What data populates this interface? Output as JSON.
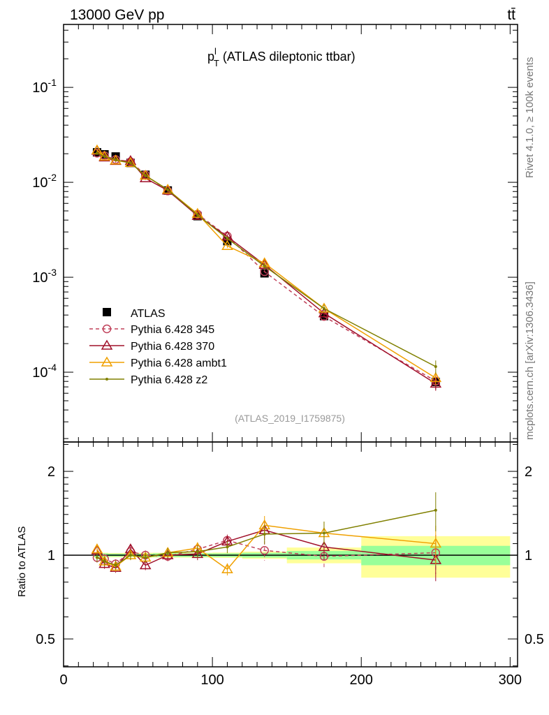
{
  "header": {
    "left": "13000 GeV pp",
    "right": "tt̄"
  },
  "side": {
    "top": "Rivet 4.1.0, ≥ 100k events",
    "bottom": "mcplots.cern.ch [arXiv:1306.3436]"
  },
  "chart_data": [
    {
      "type": "line",
      "title": "p_T^l (ATLAS dileptonic ttbar)",
      "title_main": "p",
      "title_sup": "l",
      "title_sub": "T",
      "title_rest": " (ATLAS dileptonic ttbar)",
      "annotation": "(ATLAS_2019_I1759875)",
      "yscale": "log",
      "xlim": [
        0,
        305
      ],
      "ylim": [
        1.84e-05,
        0.46
      ],
      "yticks": [
        {
          "v": 0.1,
          "label": "10^-1"
        },
        {
          "v": 0.01,
          "label": "10^-2"
        },
        {
          "v": 0.001,
          "label": "10^-3"
        },
        {
          "v": 0.0001,
          "label": "10^-4"
        }
      ],
      "legend_position": "lower-left",
      "x": [
        22.5,
        27.5,
        35,
        45,
        55,
        70,
        90,
        110,
        135,
        175,
        250
      ],
      "bins": [
        [
          20,
          25
        ],
        [
          25,
          30
        ],
        [
          30,
          40
        ],
        [
          40,
          50
        ],
        [
          50,
          60
        ],
        [
          60,
          80
        ],
        [
          80,
          100
        ],
        [
          100,
          120
        ],
        [
          120,
          150
        ],
        [
          150,
          200
        ],
        [
          200,
          300
        ]
      ],
      "data": {
        "name": "ATLAS",
        "values": [
          0.0207,
          0.0197,
          0.0187,
          0.016,
          0.012,
          0.0082,
          0.0044,
          0.0024,
          0.0011,
          0.00039,
          7.9e-05
        ],
        "rel_err_stat": [
          0.015,
          0.015,
          0.012,
          0.012,
          0.012,
          0.015,
          0.015,
          0.015,
          0.02,
          0.035,
          0.08
        ],
        "rel_err_tot": [
          0.02,
          0.02,
          0.018,
          0.018,
          0.02,
          0.02,
          0.02,
          0.022,
          0.03,
          0.065,
          0.17
        ]
      },
      "series": [
        {
          "name": "Pythia 6.428 345",
          "color": "#c0415a",
          "marker": "circle",
          "dashed": true,
          "ratio": [
            0.98,
            0.97,
            0.93,
            1.03,
            1.0,
            0.99,
            1.05,
            1.13,
            1.04,
            0.99,
            1.02
          ],
          "rel_err": [
            0.04,
            0.04,
            0.04,
            0.04,
            0.04,
            0.04,
            0.05,
            0.05,
            0.08,
            0.1,
            0.16
          ]
        },
        {
          "name": "Pythia 6.428 370",
          "color": "#a0102a",
          "marker": "triangle",
          "dashed": false,
          "ratio": [
            1.04,
            0.93,
            0.9,
            1.05,
            0.92,
            1.0,
            1.01,
            1.12,
            1.23,
            1.07,
            0.96
          ],
          "rel_err": [
            0.04,
            0.04,
            0.04,
            0.04,
            0.04,
            0.04,
            0.05,
            0.05,
            0.08,
            0.1,
            0.16
          ]
        },
        {
          "name": "Pythia 6.428 ambt1",
          "color": "#f0a000",
          "marker": "triangle",
          "dashed": false,
          "ratio": [
            1.05,
            0.95,
            0.91,
            1.0,
            0.98,
            1.02,
            1.06,
            0.89,
            1.28,
            1.2,
            1.1
          ],
          "rel_err": [
            0.04,
            0.04,
            0.04,
            0.04,
            0.04,
            0.04,
            0.05,
            0.05,
            0.08,
            0.1,
            0.16
          ]
        },
        {
          "name": "Pythia 6.428 z2",
          "color": "#808000",
          "marker": "dot",
          "dashed": false,
          "ratio": [
            0.98,
            0.95,
            0.92,
            1.0,
            0.98,
            1.02,
            1.03,
            1.07,
            1.19,
            1.2,
            1.45
          ],
          "rel_err": [
            0.04,
            0.04,
            0.04,
            0.04,
            0.04,
            0.04,
            0.05,
            0.05,
            0.08,
            0.1,
            0.16
          ]
        }
      ]
    },
    {
      "type": "line",
      "ylabel": "Ratio to ATLAS",
      "yscale": "log",
      "ylim": [
        0.397,
        2.55
      ],
      "yticks": [
        {
          "v": 2,
          "label": "2"
        },
        {
          "v": 1,
          "label": "1"
        },
        {
          "v": 0.5,
          "label": "0.5"
        }
      ],
      "xticks": [
        {
          "v": 0,
          "label": "0"
        },
        {
          "v": 100,
          "label": "100"
        },
        {
          "v": 200,
          "label": "200"
        },
        {
          "v": 300,
          "label": "300"
        }
      ]
    }
  ]
}
